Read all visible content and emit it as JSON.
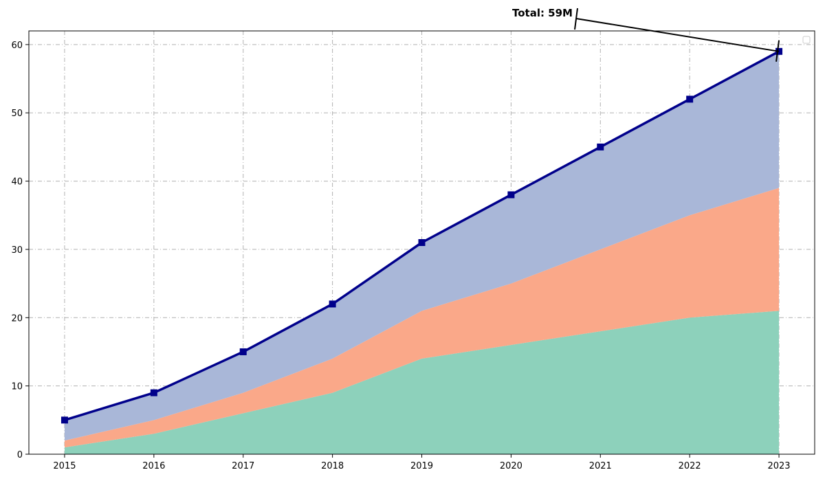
{
  "chart_data": {
    "type": "area",
    "stacked": true,
    "x": [
      2015,
      2016,
      2017,
      2018,
      2019,
      2020,
      2021,
      2022,
      2023
    ],
    "series": [
      {
        "values": [
          1,
          3,
          6,
          9,
          14,
          16,
          18,
          20,
          21
        ],
        "color": "#8dd1bb"
      },
      {
        "values": [
          1,
          2,
          3,
          5,
          7,
          9,
          12,
          15,
          18
        ],
        "color": "#faa889"
      },
      {
        "values": [
          3,
          4,
          6,
          8,
          10,
          13,
          15,
          17,
          20
        ],
        "color": "#a9b7d8"
      }
    ],
    "total_line": {
      "values": [
        5,
        9,
        15,
        22,
        31,
        38,
        45,
        52,
        59
      ],
      "color": "#00008b",
      "marker": "square"
    },
    "annotation": {
      "text": "Total: 59M",
      "target_x": 2023,
      "target_y": 59
    },
    "xlabel": "",
    "ylabel": "",
    "xlim": [
      2014.6,
      2023.4
    ],
    "ylim": [
      0,
      62
    ],
    "yticks": [
      0,
      10,
      20,
      30,
      40,
      50,
      60
    ],
    "grid": true,
    "grid_style": "dash-dot",
    "legend": "top-right, empty"
  }
}
